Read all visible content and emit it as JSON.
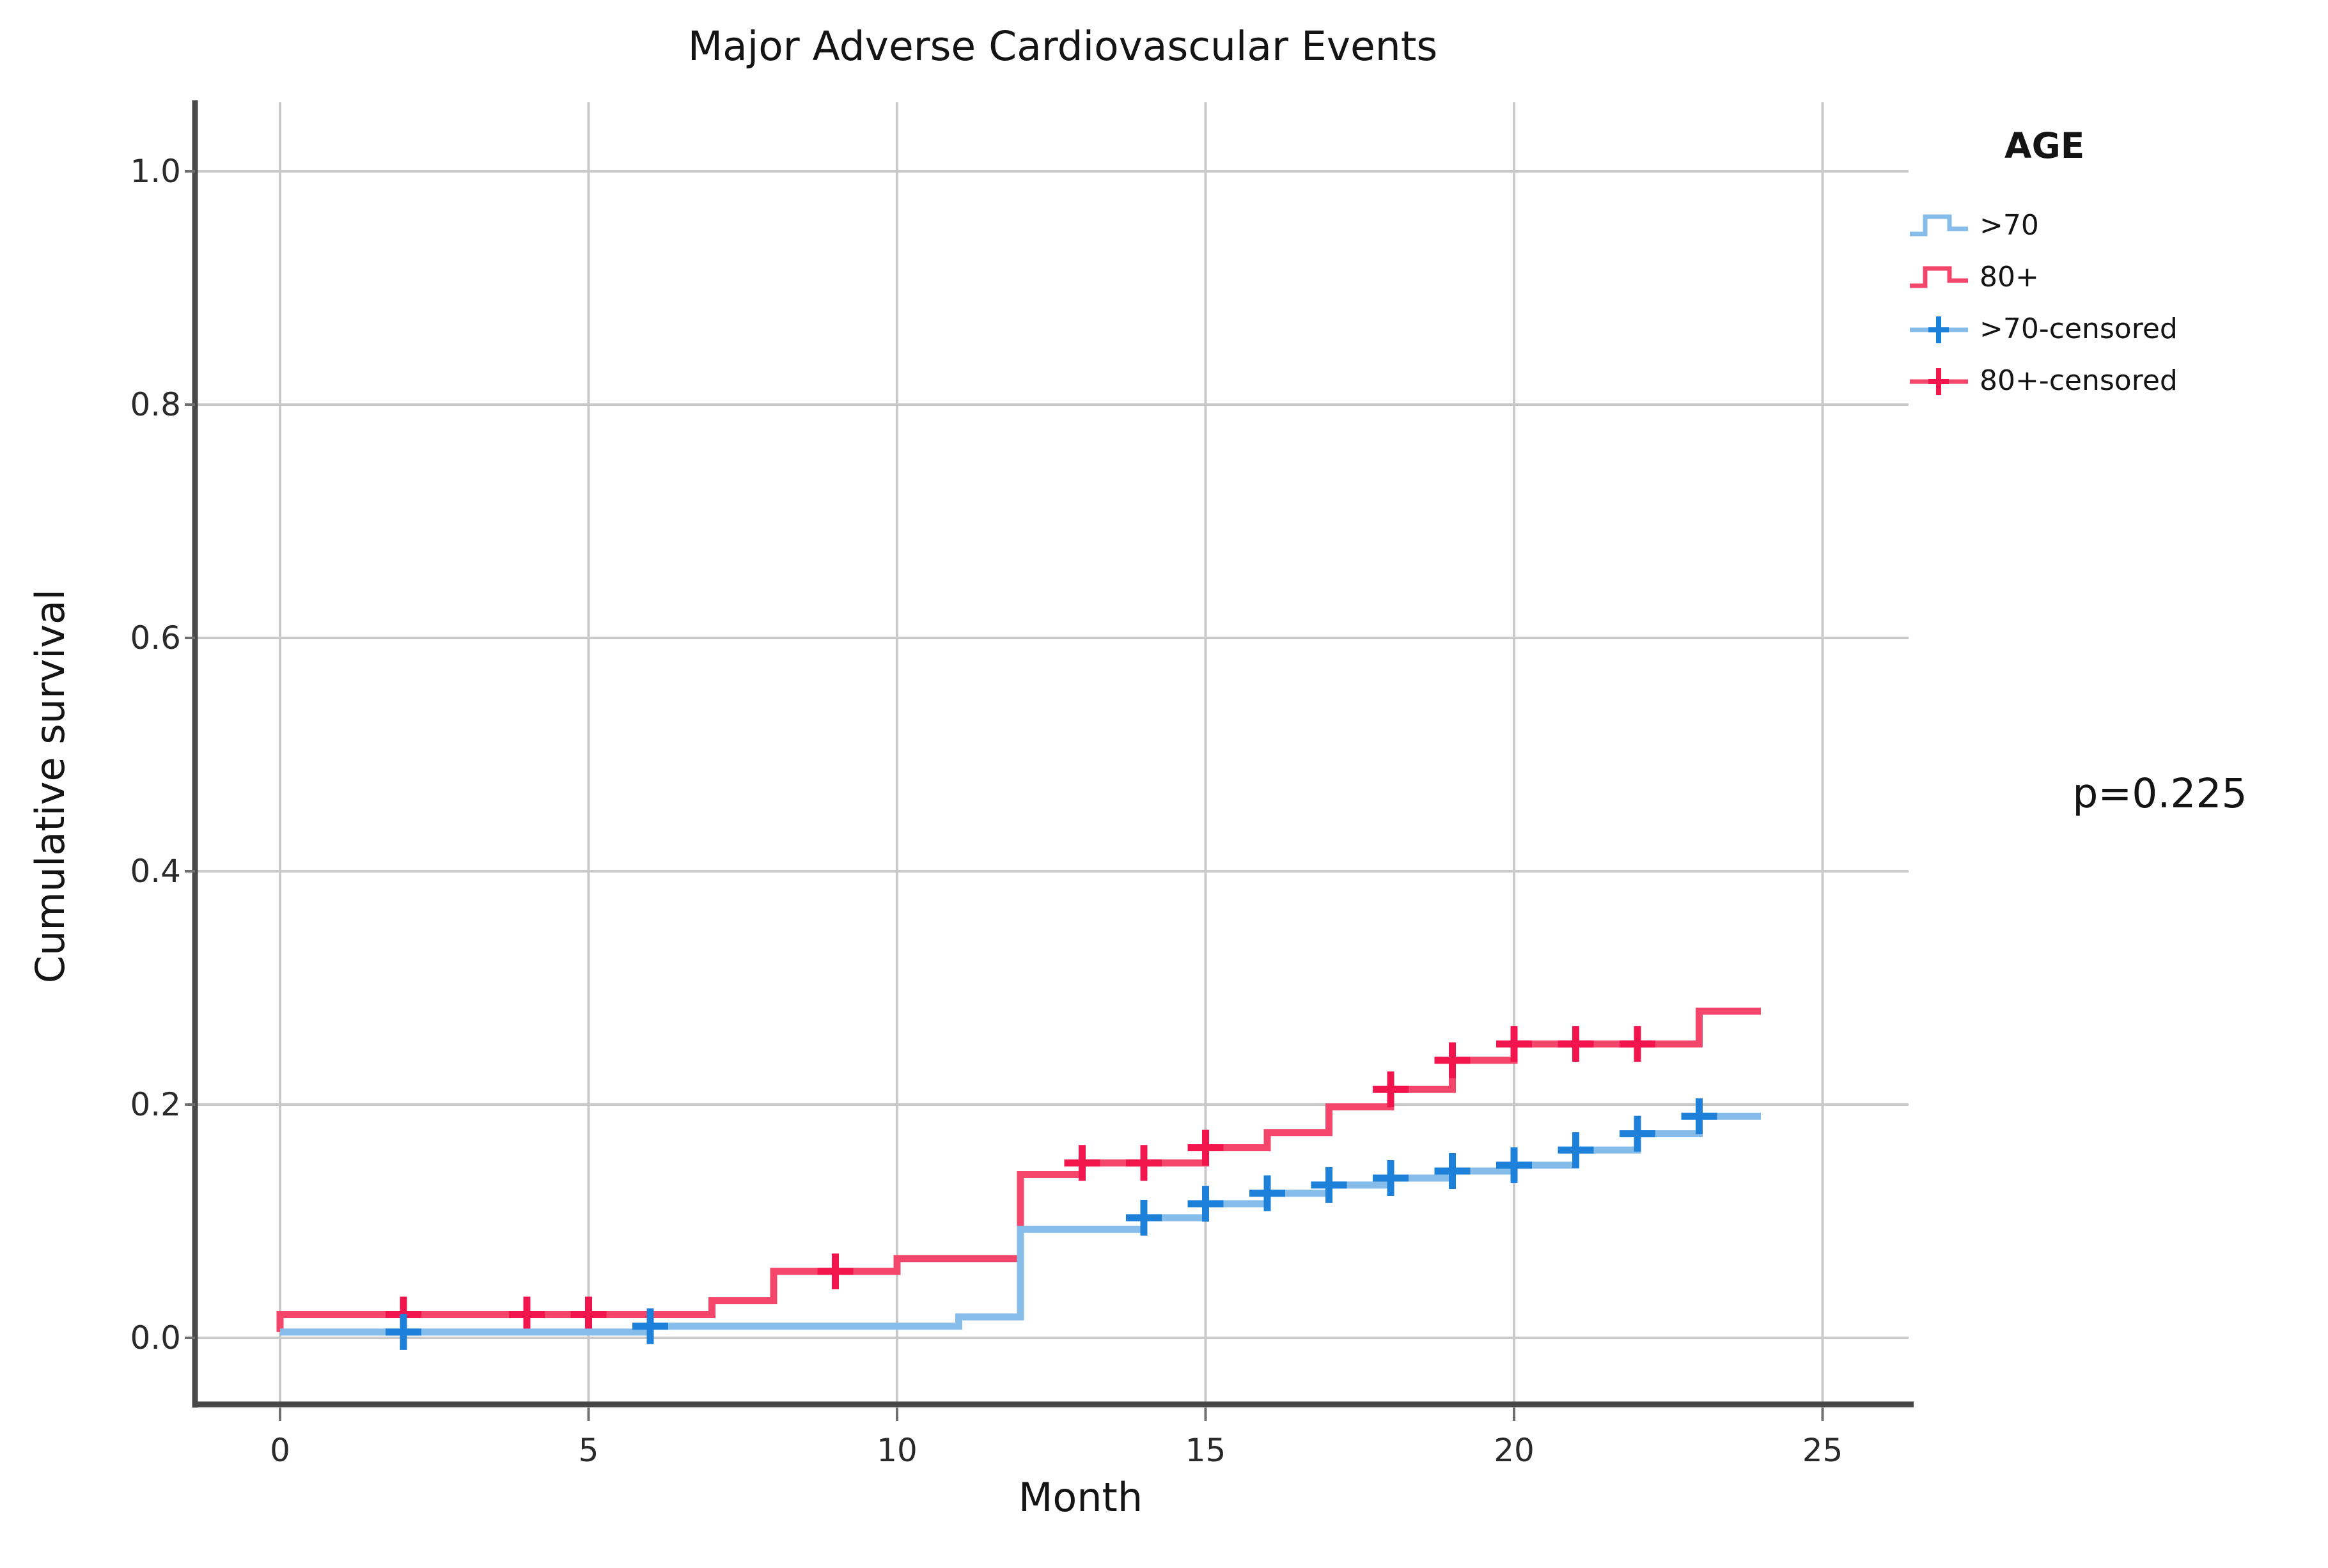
{
  "title": "Major Adverse Cardiovascular Events",
  "annotation": {
    "p_value": "p=0.225"
  },
  "legend": {
    "title": "AGE",
    "items": [
      {
        "label": ">70",
        "swatch": "step-line",
        "series": ">70"
      },
      {
        "label": "80+",
        "swatch": "step-line",
        "series": "80+"
      },
      {
        "label": ">70-censored",
        "swatch": "censor",
        "series": ">70"
      },
      {
        "label": "80+-censored",
        "swatch": "censor",
        "series": "80+"
      }
    ]
  },
  "chart_data": {
    "type": "line",
    "subtype": "kaplan-meier-step",
    "title": "Major Adverse Cardiovascular Events",
    "xlabel": "Month",
    "ylabel": "Cumulative survival",
    "xlim": [
      0,
      25
    ],
    "ylim": [
      0.0,
      1.0
    ],
    "grid": true,
    "legend_position": "top-right",
    "x_ticks": [
      0,
      5,
      10,
      15,
      20,
      25
    ],
    "x_tick_labels": [
      "0",
      "5",
      "10",
      "15",
      "20",
      "25"
    ],
    "y_ticks": [
      0.0,
      0.2,
      0.4,
      0.6,
      0.8,
      1.0
    ],
    "y_tick_labels": [
      "0.0",
      "0.2",
      "0.4",
      "0.6",
      "0.8",
      "1.0"
    ],
    "p_value": 0.225,
    "series": [
      {
        "name": "80+",
        "line_color": "#f4466b",
        "marker_color": "#f2154d",
        "end_x": 24,
        "steps": [
          [
            0,
            0.005
          ],
          [
            0,
            0.02
          ],
          [
            7,
            0.032
          ],
          [
            8,
            0.057
          ],
          [
            10,
            0.068
          ],
          [
            12,
            0.14
          ],
          [
            13,
            0.15
          ],
          [
            15,
            0.163
          ],
          [
            16,
            0.176
          ],
          [
            17,
            0.198
          ],
          [
            18,
            0.213
          ],
          [
            19,
            0.238
          ],
          [
            20,
            0.252
          ],
          [
            23,
            0.28
          ]
        ],
        "censored": [
          [
            2,
            0.02
          ],
          [
            4,
            0.02
          ],
          [
            5,
            0.02
          ],
          [
            9,
            0.057
          ],
          [
            13,
            0.15
          ],
          [
            14,
            0.15
          ],
          [
            15,
            0.163
          ],
          [
            18,
            0.213
          ],
          [
            19,
            0.238
          ],
          [
            20,
            0.252
          ],
          [
            21,
            0.252
          ],
          [
            22,
            0.252
          ]
        ]
      },
      {
        "name": ">70",
        "line_color": "#85bce9",
        "marker_color": "#1d80d9",
        "end_x": 24,
        "steps": [
          [
            0,
            0.005
          ],
          [
            6,
            0.01
          ],
          [
            11,
            0.018
          ],
          [
            12,
            0.093
          ],
          [
            14,
            0.103
          ],
          [
            15,
            0.115
          ],
          [
            16,
            0.124
          ],
          [
            17,
            0.131
          ],
          [
            18,
            0.137
          ],
          [
            19,
            0.143
          ],
          [
            20,
            0.148
          ],
          [
            21,
            0.161
          ],
          [
            22,
            0.175
          ],
          [
            23,
            0.19
          ]
        ],
        "censored": [
          [
            2,
            0.005
          ],
          [
            6,
            0.01
          ],
          [
            14,
            0.103
          ],
          [
            15,
            0.115
          ],
          [
            16,
            0.124
          ],
          [
            17,
            0.131
          ],
          [
            18,
            0.137
          ],
          [
            19,
            0.143
          ],
          [
            20,
            0.148
          ],
          [
            21,
            0.161
          ],
          [
            22,
            0.175
          ],
          [
            23,
            0.19
          ]
        ]
      }
    ],
    "colors": {
      "grid": "#c9c9c9",
      "axis": "#474747",
      "tick": "#6f6f6f",
      "blue_line": "#85bce9",
      "blue_marker": "#1d80d9",
      "red_line": "#f4466b",
      "red_marker": "#f2154d"
    }
  }
}
